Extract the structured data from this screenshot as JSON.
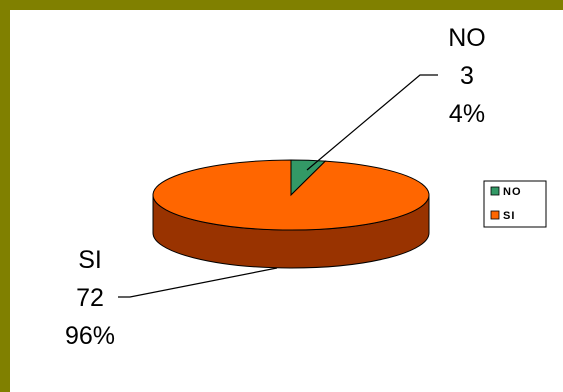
{
  "chart_data": {
    "type": "pie",
    "title": "",
    "slices": [
      {
        "label": "NO",
        "value": 3,
        "percent": "4%",
        "color": "#339966"
      },
      {
        "label": "SI",
        "value": 72,
        "percent": "96%",
        "color": "#FF6600"
      }
    ],
    "side_color": "#993300",
    "frame_color": "#808000",
    "legend": {
      "position": "right",
      "entries": [
        "NO",
        "SI"
      ]
    },
    "data_labels": [
      {
        "name": "NO",
        "value": "3",
        "percent": "4%"
      },
      {
        "name": "SI",
        "value": "72",
        "percent": "96%"
      }
    ]
  }
}
